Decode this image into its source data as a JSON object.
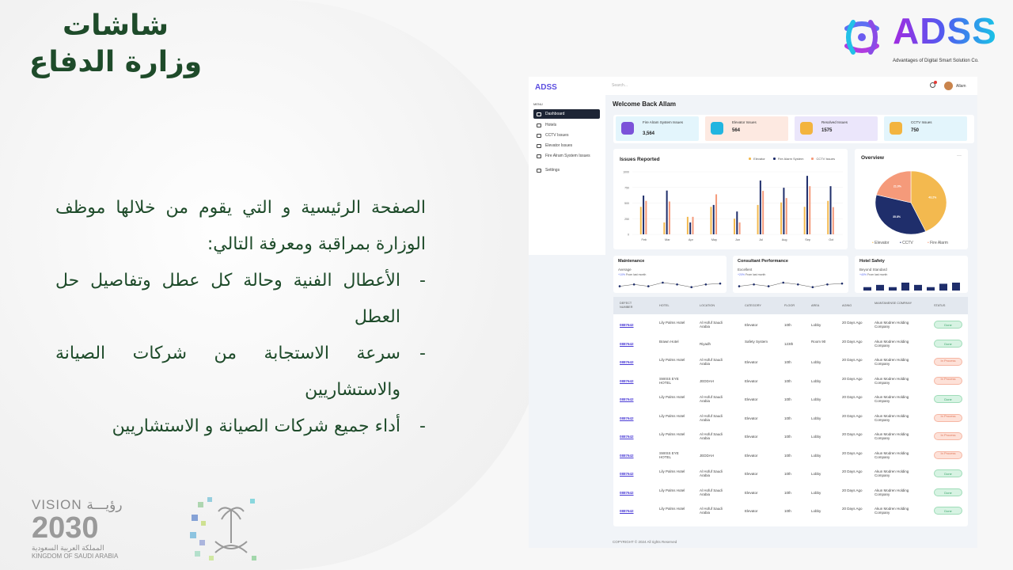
{
  "slide": {
    "title": "شاشات وزارة الدفاع",
    "intro": "الصفحة الرئيسية و التي يقوم من خلالها موظف الوزارة بمراقبة ومعرفة التالي:",
    "bullets": [
      "الأعطال الفنية وحالة كل عطل وتفاصيل حل العطل",
      "سرعة الاستجابة من شركات الصيانة والاستشاريين",
      "أداء جميع شركات الصيانة و الاستشاريين"
    ],
    "bullet_marker": "-",
    "logo": {
      "name": "ADSS",
      "tagline": "Advantages of Digital Smart Solution Co."
    },
    "vision": {
      "line1": "VISION رؤيـــة",
      "year": "2030",
      "arabic": "المملكة العربية السعودية",
      "english": "KINGDOM OF SAUDI ARABIA"
    }
  },
  "dashboard": {
    "brand": "ADSS",
    "menu_label": "MENU",
    "sidebar": [
      {
        "label": "Dashboard",
        "icon": "dashboard-icon",
        "active": true
      },
      {
        "label": "Hotels",
        "icon": "hotel-icon"
      },
      {
        "label": "CCTV Issues",
        "icon": "cctv-icon"
      },
      {
        "label": "Elevator Issues",
        "icon": "elevator-icon"
      },
      {
        "label": "Fire Alram System Issues",
        "icon": "fire-alarm-icon"
      },
      {
        "label": "Settings",
        "icon": "gear-icon"
      }
    ],
    "search_placeholder": "Search...",
    "user": "Allam",
    "welcome": "Welcome Back Allam",
    "stats": [
      {
        "label": "Fire Alram System Issues",
        "value": "3,564",
        "bg": "#e3f5fc",
        "icon_bg": "#7b52d9",
        "icon": "shield-icon"
      },
      {
        "label": "Elevator Issues",
        "value": "564",
        "bg": "#fde9e1",
        "icon_bg": "#22b5e0",
        "icon": "elevator-icon"
      },
      {
        "label": "Resolved Issues",
        "value": "1575",
        "bg": "#ebe6fb",
        "icon_bg": "#f3b43f",
        "icon": "folder-icon"
      },
      {
        "label": "CCTV Issues",
        "value": "750",
        "bg": "#e3f5fc",
        "icon_bg": "#f3b43f",
        "icon": "folder-icon"
      }
    ],
    "overview_title": "Overview",
    "overview_menu": "···",
    "cards": [
      {
        "title": "Maintenance",
        "sub": "Average",
        "change": "+10%",
        "change_text": "From last month",
        "type": "line",
        "values": [
          3,
          5,
          3,
          7,
          5,
          2,
          5,
          6
        ]
      },
      {
        "title": "Consultant Performance",
        "sub": "Excellent",
        "change": "+20%",
        "change_text": "From last month",
        "type": "line",
        "values": [
          3,
          5,
          3,
          7,
          5,
          2,
          5,
          6
        ]
      },
      {
        "title": "Hotel Safety",
        "sub": "Beyond Standard",
        "change": "+40%",
        "change_text": "From last month",
        "type": "bar",
        "values": [
          3,
          5,
          3,
          7,
          5,
          3,
          6,
          7
        ]
      }
    ],
    "table": {
      "headers": [
        "DEFECT NUMBER",
        "HOTEL",
        "LOCATION",
        "CATEGORY",
        "FLOOR",
        "AREA",
        "AGING",
        "MAINTANENSE COMPANY",
        "STATUS"
      ],
      "rows": [
        [
          "0887642",
          "Lily Palms Hotel",
          "Al Hofuf Saudi Arabia",
          "Elevator",
          "10th",
          "Lobby",
          "20 Days Ago",
          "Akun Modren Holding Company",
          "Done"
        ],
        [
          "0887642",
          "Brawn Hotel",
          "Riyadh",
          "Safety System",
          "123th",
          "Room 90",
          "20 Days Ago",
          "Akun Modren Holding Company",
          "Done"
        ],
        [
          "0887642",
          "Lily Palms Hotel",
          "Al Hofuf Saudi Arabia",
          "Elevator",
          "10th",
          "Lobby",
          "20 Days Ago",
          "Akun Modren Holding Company",
          "In Process"
        ],
        [
          "0887642",
          "SWISS EYE HOTEL",
          "JEDDAH",
          "Elevator",
          "10th",
          "Lobby",
          "20 Days Ago",
          "Akun Modren Holding Company",
          "In Process"
        ],
        [
          "0887642",
          "Lily Palms Hotel",
          "Al Hofuf Saudi Arabia",
          "Elevator",
          "10th",
          "Lobby",
          "20 Days Ago",
          "Akun Modren Holding Company",
          "Done"
        ],
        [
          "0887642",
          "Lily Palms Hotel",
          "Al Hofuf Saudi Arabia",
          "Elevator",
          "10th",
          "Lobby",
          "20 Days Ago",
          "Akun Modren Holding Company",
          "In Process"
        ],
        [
          "0887642",
          "Lily Palms Hotel",
          "Al Hofuf Saudi Arabia",
          "Elevator",
          "10th",
          "Lobby",
          "20 Days Ago",
          "Akun Modren Holding Company",
          "In Process"
        ],
        [
          "0887642",
          "SWISS EYE HOTEL",
          "JEDDAH",
          "Elevator",
          "10th",
          "Lobby",
          "20 Days Ago",
          "Akun Modren Holding Company",
          "In Process"
        ],
        [
          "0887642",
          "Lily Palms Hotel",
          "Al Hofuf Saudi Arabia",
          "Elevator",
          "10th",
          "Lobby",
          "20 Days Ago",
          "Akun Modren Holding Company",
          "Done"
        ],
        [
          "0887642",
          "Lily Palms Hotel",
          "Al Hofuf Saudi Arabia",
          "Elevator",
          "10th",
          "Lobby",
          "20 Days Ago",
          "Akun Modren Holding Company",
          "Done"
        ],
        [
          "0887642",
          "Lily Palms Hotel",
          "Al Hofuf Saudi Arabia",
          "Elevator",
          "10th",
          "Lobby",
          "20 Days Ago",
          "Akun Modren Holding Company",
          "Done"
        ]
      ]
    },
    "footer": "COPYRIGHT © 2024 All rights Reserved"
  },
  "chart_data": [
    {
      "type": "bar",
      "title": "Issues Reported",
      "categories": [
        "Feb",
        "Mar",
        "Apr",
        "May",
        "Jun",
        "Jul",
        "Aug",
        "Sep",
        "Oct"
      ],
      "series": [
        {
          "name": "Elevator",
          "color": "#f3b94f",
          "values": [
            440,
            190,
            280,
            440,
            250,
            470,
            510,
            440,
            535
          ]
        },
        {
          "name": "Fire Alarm System",
          "color": "#1f2e6b",
          "values": [
            620,
            700,
            190,
            470,
            365,
            860,
            745,
            935,
            770
          ]
        },
        {
          "name": "CCTV Issues",
          "color": "#f59a7a",
          "values": [
            535,
            525,
            280,
            640,
            190,
            695,
            580,
            770,
            435
          ]
        }
      ],
      "ylim": [
        0,
        1000
      ],
      "yticks": [
        "0",
        "250",
        "500",
        "750",
        "1000"
      ],
      "grid": true,
      "legend": "top-right"
    },
    {
      "type": "pie",
      "title": "Overview",
      "labels": [
        "Elevator",
        "CCTV",
        "Fire Alarm"
      ],
      "values": [
        43.2,
        35.8,
        21.0
      ],
      "value_labels": [
        "43.2%",
        "35.8%",
        "21.0%"
      ],
      "colors": [
        "#f3b94f",
        "#1f2e6b",
        "#f59a7a"
      ],
      "legend": "bottom"
    }
  ]
}
